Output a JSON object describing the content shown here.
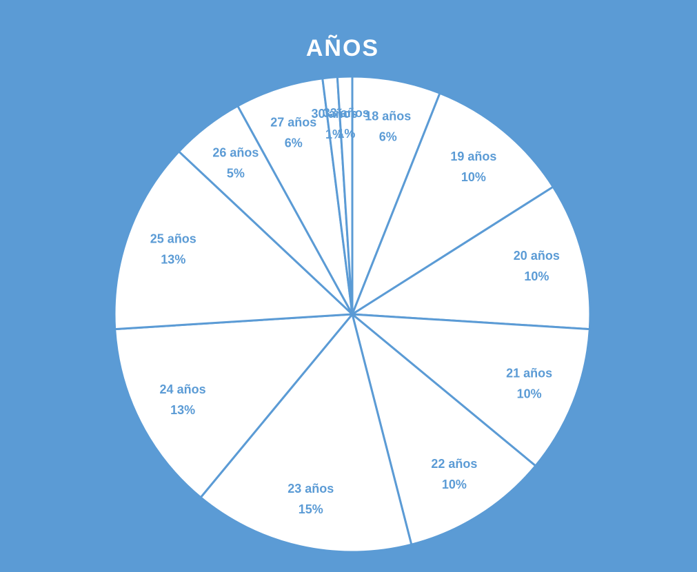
{
  "chart_data": {
    "type": "pie",
    "title": "AÑOS",
    "categories": [
      "18 años",
      "19 años",
      "20 años",
      "21 años",
      "22 años",
      "23 años",
      "24 años",
      "25 años",
      "26 años",
      "27 años",
      "30 años",
      "33 años"
    ],
    "values": [
      6,
      10,
      10,
      10,
      10,
      15,
      13,
      13,
      5,
      6,
      1,
      1
    ],
    "value_labels": [
      "6%",
      "10%",
      "10%",
      "10%",
      "10%",
      "15%",
      "13%",
      "13%",
      "5%",
      "6%",
      "1%",
      "1%"
    ],
    "color": "#ffffff",
    "edge_color": "#5b9bd5",
    "background": "#5b9bd5"
  }
}
